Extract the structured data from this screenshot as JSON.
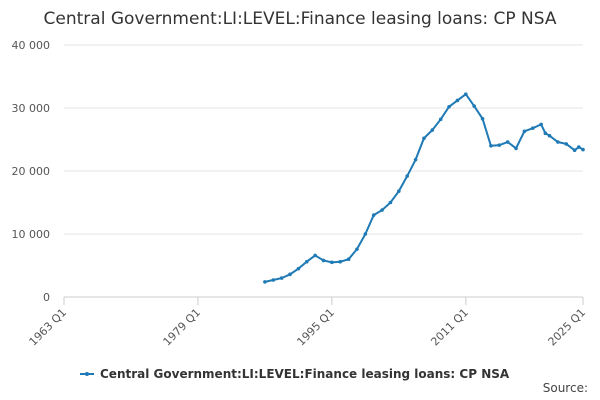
{
  "chart_data": {
    "type": "line",
    "title": "Central Government:LI:LEVEL:Finance leasing loans: CP NSA",
    "x": [
      "1987 Q1",
      "1988 Q1",
      "1989 Q1",
      "1990 Q1",
      "1991 Q1",
      "1992 Q1",
      "1993 Q1",
      "1994 Q1",
      "1995 Q1",
      "1996 Q1",
      "1997 Q1",
      "1998 Q1",
      "1999 Q1",
      "2000 Q1",
      "2001 Q1",
      "2002 Q1",
      "2003 Q1",
      "2004 Q1",
      "2005 Q1",
      "2006 Q1",
      "2007 Q1",
      "2008 Q1",
      "2009 Q1",
      "2010 Q1",
      "2011 Q1",
      "2012 Q1",
      "2013 Q1",
      "2014 Q1",
      "2015 Q1",
      "2016 Q1",
      "2017 Q1",
      "2018 Q1",
      "2019 Q1",
      "2020 Q1",
      "2020 Q3",
      "2021 Q1",
      "2022 Q1",
      "2023 Q1",
      "2024 Q1",
      "2024 Q3",
      "2025 Q1"
    ],
    "series": [
      {
        "name": "Central Government:LI:LEVEL:Finance leasing loans: CP NSA",
        "color": "#1f7ab5",
        "values": [
          2400,
          2700,
          3000,
          3600,
          4500,
          5600,
          6600,
          5800,
          5500,
          5600,
          6000,
          7600,
          10000,
          13000,
          13800,
          15000,
          16800,
          19200,
          21800,
          25200,
          26500,
          28200,
          30200,
          31200,
          32200,
          30300,
          28300,
          24000,
          24100,
          24600,
          23600,
          26300,
          26800,
          27400,
          26000,
          25600,
          24600,
          24300,
          23300,
          23800,
          23400
        ]
      }
    ],
    "xlim": [
      "1963 Q1",
      "2025 Q1"
    ],
    "xticks": [
      "1963 Q1",
      "1979 Q1",
      "1995 Q1",
      "2011 Q1",
      "2025 Q1"
    ],
    "ylim": [
      0,
      40000
    ],
    "yticks": [
      0,
      {
        "value": 10000,
        "label": "10 000"
      },
      {
        "value": 20000,
        "label": "20 000"
      },
      {
        "value": 30000,
        "label": "30 000"
      },
      {
        "value": 40000,
        "label": "40 000"
      }
    ],
    "grid": true,
    "source": "Source:"
  }
}
